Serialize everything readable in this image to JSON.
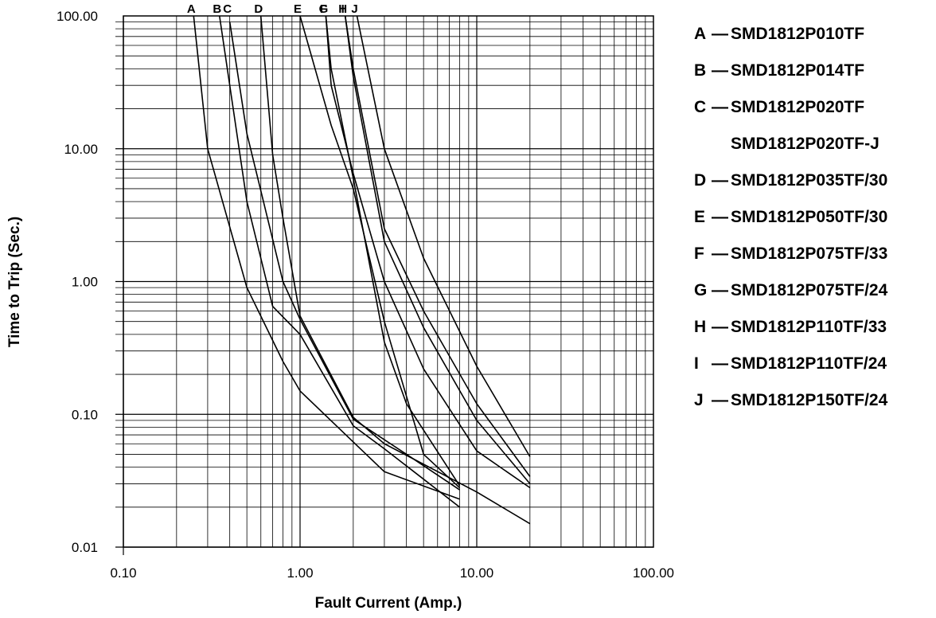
{
  "chart_data": {
    "type": "line",
    "xlabel": "Fault Current (Amp.)",
    "ylabel": "Time to Trip (Sec.)",
    "xscale": "log",
    "yscale": "log",
    "xlim": [
      0.1,
      100
    ],
    "ylim": [
      0.01,
      100
    ],
    "grid": true,
    "legend_position": "right",
    "x_tick_labels": [
      {
        "value": 0.1,
        "label": "0.10"
      },
      {
        "value": 1,
        "label": "1.00"
      },
      {
        "value": 10,
        "label": "10.00"
      },
      {
        "value": 100,
        "label": "100.00"
      }
    ],
    "y_tick_labels": [
      {
        "value": 0.01,
        "label": "0.01"
      },
      {
        "value": 0.1,
        "label": "0.10"
      },
      {
        "value": 1,
        "label": "1.00"
      },
      {
        "value": 10,
        "label": "10.00"
      },
      {
        "value": 100,
        "label": "100.00"
      }
    ],
    "series": [
      {
        "name": "A",
        "x": [
          0.25,
          0.3,
          0.5,
          0.8,
          1.0,
          2.0,
          3.0,
          8.0
        ],
        "y": [
          100,
          10,
          0.9,
          0.25,
          0.15,
          0.062,
          0.037,
          0.023
        ]
      },
      {
        "name": "B",
        "x": [
          0.35,
          0.5,
          0.7,
          1.0,
          2.0,
          3.0,
          8.0
        ],
        "y": [
          100,
          4.0,
          0.65,
          0.4,
          0.082,
          0.055,
          0.02
        ]
      },
      {
        "name": "C",
        "x": [
          0.4,
          0.5,
          0.8,
          1.0,
          2.0,
          4.0,
          8.0
        ],
        "y": [
          90,
          13,
          1.0,
          0.52,
          0.092,
          0.05,
          0.027
        ]
      },
      {
        "name": "D",
        "x": [
          0.6,
          0.7,
          0.8,
          1.0,
          2.0,
          3.0,
          10.0,
          20.0
        ],
        "y": [
          100,
          9.0,
          3.0,
          0.55,
          0.095,
          0.06,
          0.026,
          0.015
        ]
      },
      {
        "name": "E",
        "x": [
          1.0,
          1.5,
          2.0,
          3.0,
          5.0,
          8.0
        ],
        "y": [
          100,
          15,
          5.0,
          0.5,
          0.05,
          0.028
        ]
      },
      {
        "name": "F",
        "x": [
          1.4,
          1.5,
          2.0,
          3.0,
          4.0,
          8.0
        ],
        "y": [
          100,
          40,
          6.0,
          0.35,
          0.12,
          0.029
        ]
      },
      {
        "name": "G",
        "x": [
          1.4,
          1.5,
          2.0,
          3.0,
          5.0,
          10.0,
          20.0
        ],
        "y": [
          100,
          30,
          6.5,
          1.0,
          0.22,
          0.053,
          0.028
        ]
      },
      {
        "name": "H",
        "x": [
          1.8,
          2.0,
          3.0,
          5.0,
          10.0,
          20.0
        ],
        "y": [
          100,
          40,
          2.5,
          0.6,
          0.12,
          0.034
        ]
      },
      {
        "name": "I",
        "x": [
          1.8,
          2.0,
          3.0,
          5.0,
          10.0,
          20.0
        ],
        "y": [
          100,
          35,
          2.0,
          0.45,
          0.09,
          0.03
        ]
      },
      {
        "name": "J",
        "x": [
          2.1,
          3.0,
          5.0,
          10.0,
          20.0
        ],
        "y": [
          100,
          10,
          1.5,
          0.23,
          0.048
        ]
      }
    ]
  },
  "legend": [
    {
      "letter": "A",
      "dash": "—",
      "part": "SMD1812P010TF"
    },
    {
      "letter": "B",
      "dash": "—",
      "part": "SMD1812P014TF"
    },
    {
      "letter": "C",
      "dash": "—",
      "part": "SMD1812P020TF"
    },
    {
      "letter": "",
      "dash": "",
      "part": "SMD1812P020TF-J"
    },
    {
      "letter": "D",
      "dash": "—",
      "part": "SMD1812P035TF/30"
    },
    {
      "letter": "E",
      "dash": "—",
      "part": "SMD1812P050TF/30"
    },
    {
      "letter": "F",
      "dash": "—",
      "part": "SMD1812P075TF/33"
    },
    {
      "letter": "G",
      "dash": "—",
      "part": "SMD1812P075TF/24"
    },
    {
      "letter": "H",
      "dash": "—",
      "part": "SMD1812P110TF/33"
    },
    {
      "letter": "I",
      "dash": "—",
      "part": "SMD1812P110TF/24"
    },
    {
      "letter": "J",
      "dash": "—",
      "part": "SMD1812P150TF/24"
    }
  ]
}
